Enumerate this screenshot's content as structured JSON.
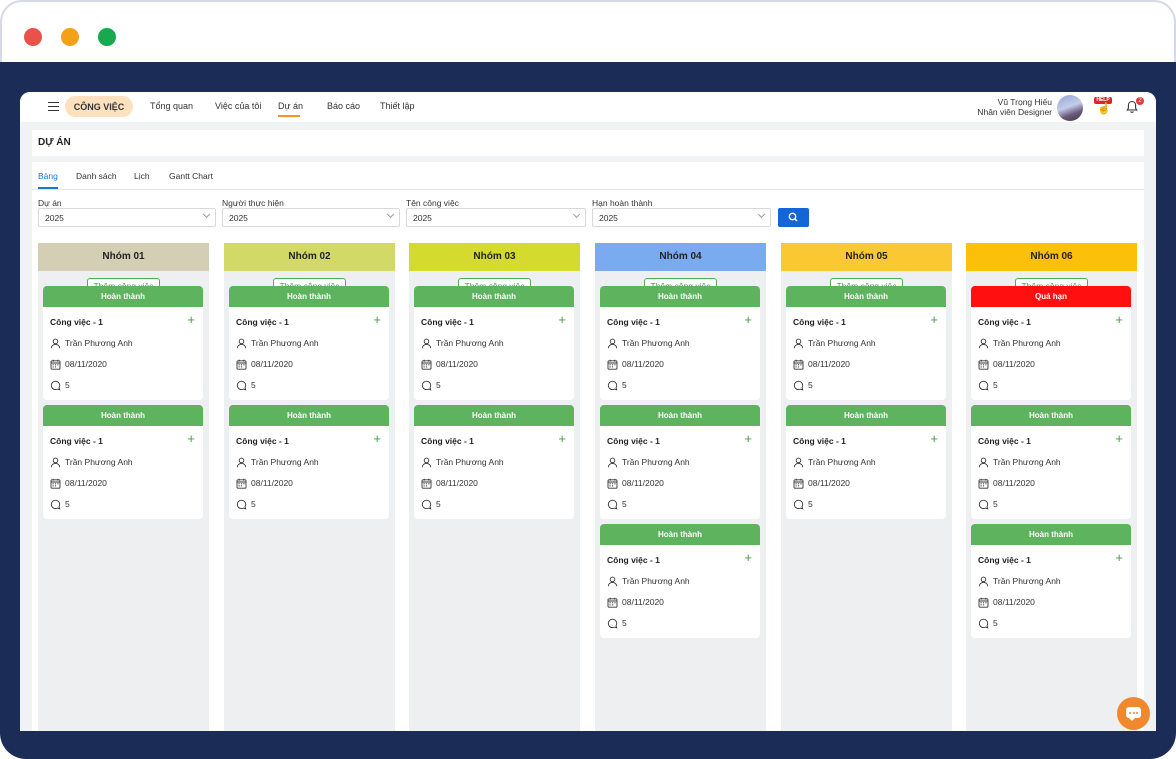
{
  "window": {
    "controls": [
      "close",
      "minimize",
      "maximize"
    ]
  },
  "nav": {
    "module": "CÔNG VIỆC",
    "items": [
      "Tổng quan",
      "Việc của tôi",
      "Dự án",
      "Báo cáo",
      "Thiết lập"
    ],
    "active": "Dự án"
  },
  "user": {
    "name": "Vũ Trọng Hiếu",
    "role": "Nhân viên Designer",
    "help_label": "HELP",
    "notification_count": "2"
  },
  "page": {
    "title": "DỰ ÁN"
  },
  "tabs": [
    "Bảng",
    "Danh sách",
    "Lịch",
    "Gantt Chart"
  ],
  "filters": [
    {
      "label": "Dự án",
      "value": "2025"
    },
    {
      "label": "Người thực hiện",
      "value": "2025"
    },
    {
      "label": "Tên công việc",
      "value": "2025"
    },
    {
      "label": "Hạn hoàn thành",
      "value": "2025"
    }
  ],
  "add_task_label": "Thêm công việc",
  "columns": [
    {
      "name": "Nhóm 01",
      "color": "#d4cfb4",
      "cards": [
        {
          "status": "Hoàn thành",
          "title": "Công việc - 1",
          "assignee": "Trần Phương Anh",
          "date": "08/11/2020",
          "comments": "5"
        },
        {
          "status": "Hoàn thành",
          "title": "Công việc - 1",
          "assignee": "Trần Phương Anh",
          "date": "08/11/2020",
          "comments": "5"
        }
      ]
    },
    {
      "name": "Nhóm 02",
      "color": "#d3d966",
      "cards": [
        {
          "status": "Hoàn thành",
          "title": "Công việc - 1",
          "assignee": "Trần Phương Anh",
          "date": "08/11/2020",
          "comments": "5"
        },
        {
          "status": "Hoàn thành",
          "title": "Công việc - 1",
          "assignee": "Trần Phương Anh",
          "date": "08/11/2020",
          "comments": "5"
        }
      ]
    },
    {
      "name": "Nhóm 03",
      "color": "#d4da2e",
      "cards": [
        {
          "status": "Hoàn thành",
          "title": "Công việc - 1",
          "assignee": "Trần Phương Anh",
          "date": "08/11/2020",
          "comments": "5"
        },
        {
          "status": "Hoàn thành",
          "title": "Công việc - 1",
          "assignee": "Trần Phương Anh",
          "date": "08/11/2020",
          "comments": "5"
        }
      ]
    },
    {
      "name": "Nhóm 04",
      "color": "#7aaaf0",
      "cards": [
        {
          "status": "Hoàn thành",
          "title": "Công việc - 1",
          "assignee": "Trần Phương Anh",
          "date": "08/11/2020",
          "comments": "5"
        },
        {
          "status": "Hoàn thành",
          "title": "Công việc - 1",
          "assignee": "Trần Phương Anh",
          "date": "08/11/2020",
          "comments": "5"
        },
        {
          "status": "Hoàn thành",
          "title": "Công việc - 1",
          "assignee": "Trần Phương Anh",
          "date": "08/11/2020",
          "comments": "5"
        }
      ]
    },
    {
      "name": "Nhóm 05",
      "color": "#f9c832",
      "cards": [
        {
          "status": "Hoàn thành",
          "title": "Công việc - 1",
          "assignee": "Trần Phương Anh",
          "date": "08/11/2020",
          "comments": "5"
        },
        {
          "status": "Hoàn thành",
          "title": "Công việc - 1",
          "assignee": "Trần Phương Anh",
          "date": "08/11/2020",
          "comments": "5"
        }
      ]
    },
    {
      "name": "Nhóm 06",
      "color": "#fcbf0a",
      "cards": [
        {
          "status": "Quá hạn",
          "late": true,
          "title": "Công việc - 1",
          "assignee": "Trần Phương Anh",
          "date": "08/11/2020",
          "comments": "5"
        },
        {
          "status": "Hoàn thành",
          "title": "Công việc - 1",
          "assignee": "Trần Phương Anh",
          "date": "08/11/2020",
          "comments": "5"
        },
        {
          "status": "Hoàn thành",
          "title": "Công việc - 1",
          "assignee": "Trần Phương Anh",
          "date": "08/11/2020",
          "comments": "5"
        }
      ]
    }
  ]
}
